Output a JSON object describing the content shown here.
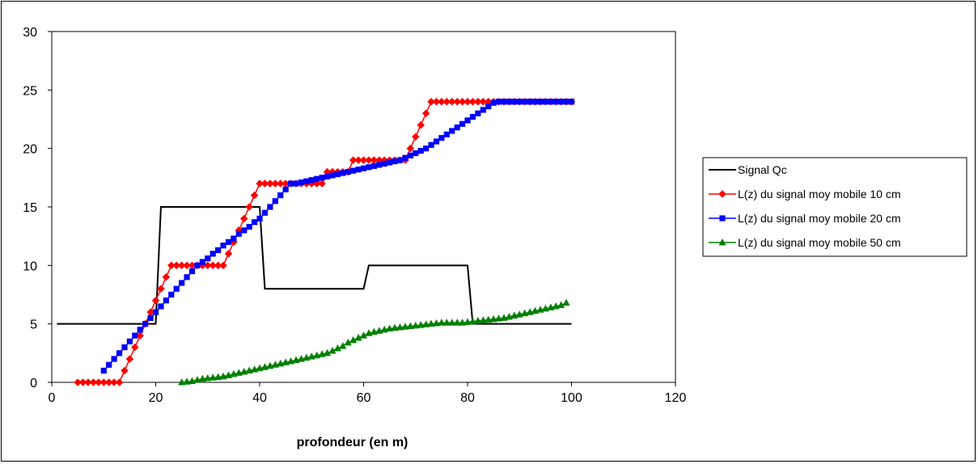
{
  "chart_data": {
    "type": "line",
    "title": "",
    "xlabel": "profondeur (en m)",
    "ylabel": "",
    "xlim": [
      0,
      120
    ],
    "ylim": [
      0,
      30
    ],
    "xticks": [
      0,
      20,
      40,
      60,
      80,
      100,
      120
    ],
    "yticks": [
      0,
      5,
      10,
      15,
      20,
      25,
      30
    ],
    "grid": false,
    "legend_position": "right",
    "series": [
      {
        "name": "Signal Qc",
        "color": "#000000",
        "marker": "none",
        "step": true,
        "x": [
          1,
          20,
          21,
          40,
          41,
          60,
          61,
          80,
          81,
          100
        ],
        "y": [
          5,
          5,
          15,
          15,
          8,
          8,
          10,
          10,
          5,
          5
        ]
      },
      {
        "name": "L(z) du signal moy mobile 10 cm",
        "color": "#ff0000",
        "marker": "diamond",
        "x": [
          5,
          6,
          7,
          8,
          9,
          10,
          11,
          12,
          13,
          14,
          15,
          16,
          17,
          18,
          19,
          20,
          21,
          22,
          23,
          24,
          25,
          26,
          27,
          28,
          29,
          30,
          31,
          32,
          33,
          34,
          35,
          36,
          37,
          38,
          39,
          40,
          41,
          42,
          43,
          44,
          45,
          46,
          47,
          48,
          49,
          50,
          51,
          52,
          53,
          54,
          55,
          56,
          57,
          58,
          59,
          60,
          61,
          62,
          63,
          64,
          65,
          66,
          67,
          68,
          69,
          70,
          71,
          72,
          73,
          74,
          75,
          76,
          77,
          78,
          79,
          80,
          81,
          82,
          83,
          84,
          85,
          86,
          87,
          88,
          89,
          90,
          91,
          92,
          93,
          94,
          95,
          96,
          97,
          98,
          99,
          100
        ],
        "y": [
          0,
          0,
          0,
          0,
          0,
          0,
          0,
          0,
          0,
          1,
          2,
          3,
          4,
          5,
          6,
          7,
          8,
          9,
          10,
          10,
          10,
          10,
          10,
          10,
          10,
          10,
          10,
          10,
          10,
          11,
          12,
          13,
          14,
          15,
          16,
          17,
          17,
          17,
          17,
          17,
          17,
          17,
          17,
          17,
          17,
          17,
          17,
          17,
          18,
          18,
          18,
          18,
          18,
          19,
          19,
          19,
          19,
          19,
          19,
          19,
          19,
          19,
          19,
          19,
          20,
          21,
          22,
          23,
          24,
          24,
          24,
          24,
          24,
          24,
          24,
          24,
          24,
          24,
          24,
          24,
          24,
          24,
          24,
          24,
          24,
          24,
          24,
          24,
          24,
          24,
          24,
          24,
          24,
          24,
          24,
          24
        ]
      },
      {
        "name": "L(z) du signal moy mobile 20 cm",
        "color": "#0000ff",
        "marker": "square",
        "x": [
          10,
          11,
          12,
          13,
          14,
          15,
          16,
          17,
          18,
          19,
          20,
          21,
          22,
          23,
          24,
          25,
          26,
          27,
          28,
          29,
          30,
          31,
          32,
          33,
          34,
          35,
          36,
          37,
          38,
          39,
          40,
          41,
          42,
          43,
          44,
          45,
          46,
          47,
          48,
          49,
          50,
          51,
          52,
          53,
          54,
          55,
          56,
          57,
          58,
          59,
          60,
          61,
          62,
          63,
          64,
          65,
          66,
          67,
          68,
          69,
          70,
          71,
          72,
          73,
          74,
          75,
          76,
          77,
          78,
          79,
          80,
          81,
          82,
          83,
          84,
          85,
          86,
          87,
          88,
          89,
          90,
          91,
          92,
          93,
          94,
          95,
          96,
          97,
          98,
          99,
          100
        ],
        "y": [
          1,
          1.5,
          2,
          2.5,
          3,
          3.5,
          4,
          4.5,
          5,
          5.5,
          6,
          6.5,
          7,
          7.5,
          8,
          8.5,
          9,
          9.5,
          10,
          10.3,
          10.6,
          11,
          11.3,
          11.7,
          12,
          12.3,
          12.7,
          13,
          13.3,
          13.7,
          14,
          14.5,
          15,
          15.5,
          16,
          16.5,
          17,
          17,
          17.1,
          17.2,
          17.3,
          17.4,
          17.5,
          17.6,
          17.7,
          17.8,
          17.9,
          18,
          18.1,
          18.2,
          18.3,
          18.4,
          18.5,
          18.6,
          18.7,
          18.8,
          18.9,
          19,
          19.2,
          19.4,
          19.6,
          19.8,
          20,
          20.3,
          20.6,
          20.9,
          21.2,
          21.5,
          21.8,
          22.1,
          22.4,
          22.7,
          23,
          23.3,
          23.6,
          23.9,
          24,
          24,
          24,
          24,
          24,
          24,
          24,
          24,
          24,
          24,
          24,
          24,
          24,
          24,
          24
        ]
      },
      {
        "name": "L(z) du signal moy mobile 50 cm",
        "color": "#008000",
        "marker": "triangle",
        "x": [
          25,
          26,
          27,
          28,
          29,
          30,
          31,
          32,
          33,
          34,
          35,
          36,
          37,
          38,
          39,
          40,
          41,
          42,
          43,
          44,
          45,
          46,
          47,
          48,
          49,
          50,
          51,
          52,
          53,
          54,
          55,
          56,
          57,
          58,
          59,
          60,
          61,
          62,
          63,
          64,
          65,
          66,
          67,
          68,
          69,
          70,
          71,
          72,
          73,
          74,
          75,
          76,
          77,
          78,
          79,
          80,
          81,
          82,
          83,
          84,
          85,
          86,
          87,
          88,
          89,
          90,
          91,
          92,
          93,
          94,
          95,
          96,
          97,
          98,
          99
        ],
        "y": [
          0,
          0.05,
          0.1,
          0.2,
          0.3,
          0.35,
          0.4,
          0.45,
          0.5,
          0.6,
          0.7,
          0.8,
          0.9,
          1,
          1.1,
          1.2,
          1.3,
          1.4,
          1.5,
          1.6,
          1.7,
          1.8,
          1.9,
          2,
          2.1,
          2.2,
          2.3,
          2.4,
          2.5,
          2.7,
          2.9,
          3.1,
          3.4,
          3.6,
          3.8,
          4,
          4.2,
          4.3,
          4.4,
          4.5,
          4.6,
          4.65,
          4.7,
          4.75,
          4.8,
          4.85,
          4.9,
          4.95,
          5,
          5.05,
          5.1,
          5.1,
          5.1,
          5.1,
          5.1,
          5.15,
          5.2,
          5.25,
          5.3,
          5.35,
          5.4,
          5.45,
          5.5,
          5.6,
          5.7,
          5.8,
          5.9,
          6,
          6.1,
          6.2,
          6.3,
          6.4,
          6.5,
          6.6,
          6.8
        ]
      }
    ]
  }
}
